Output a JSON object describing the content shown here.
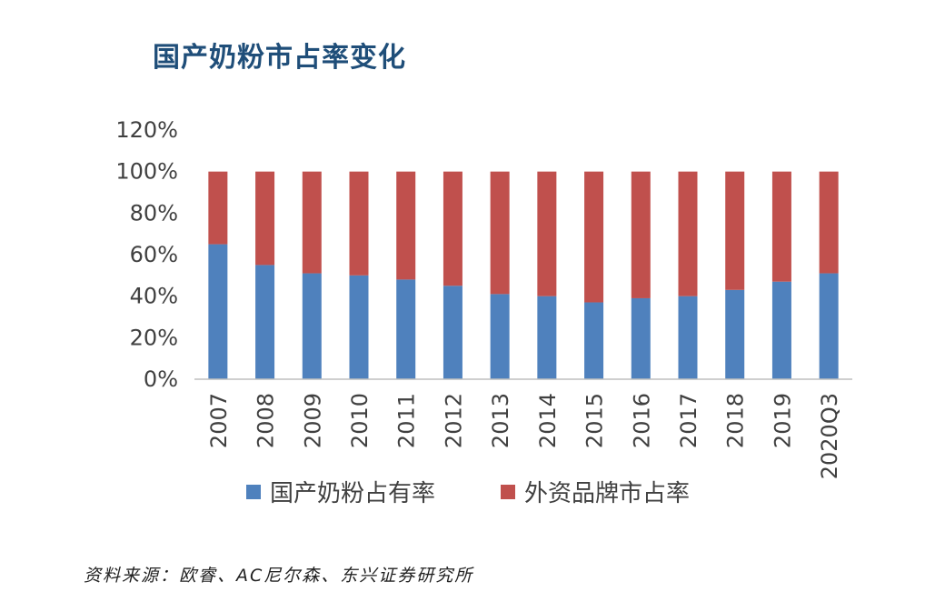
{
  "title": "国产奶粉市占率变化",
  "source": "资料来源：欧睿、AC尼尔森、东兴证券研究所",
  "colors": {
    "domestic": "#4f81bd",
    "foreign": "#c0504d",
    "axis": "#bfbfbf",
    "text": "#404040",
    "title": "#1f4e79"
  },
  "chart_data": {
    "type": "bar",
    "stacked": true,
    "title": "国产奶粉市占率变化",
    "categories": [
      "2007",
      "2008",
      "2009",
      "2010",
      "2011",
      "2012",
      "2013",
      "2014",
      "2015",
      "2016",
      "2017",
      "2018",
      "2019",
      "2020Q3"
    ],
    "series": [
      {
        "name": "国产奶粉占有率",
        "color": "#4f81bd",
        "values": [
          65,
          55,
          51,
          50,
          48,
          45,
          41,
          40,
          37,
          39,
          40,
          43,
          47,
          51
        ]
      },
      {
        "name": "外资品牌市占率",
        "color": "#c0504d",
        "values": [
          35,
          45,
          49,
          50,
          52,
          55,
          59,
          60,
          63,
          61,
          60,
          57,
          53,
          49
        ]
      }
    ],
    "ylim": [
      0,
      120
    ],
    "yticks": [
      "0%",
      "20%",
      "40%",
      "60%",
      "80%",
      "100%",
      "120%"
    ],
    "xlabel": "",
    "ylabel": "",
    "grid": false,
    "legend_position": "bottom"
  }
}
